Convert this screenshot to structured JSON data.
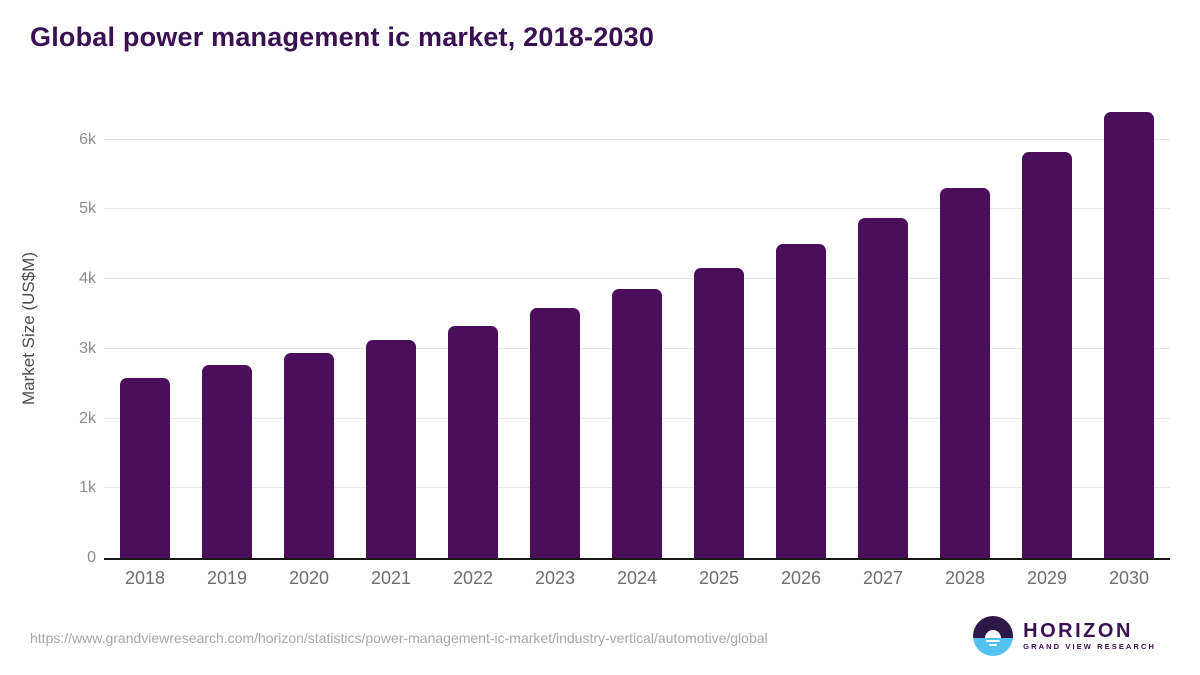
{
  "page": {
    "source_url": "https://www.grandviewresearch.com/horizon/statistics/power-management-ic-market/industry-vertical/automotive/global"
  },
  "logo": {
    "name": "HORIZON",
    "subtitle": "GRAND VIEW RESEARCH",
    "mark": "sunset-over-water-icon"
  },
  "colors": {
    "bar": "#4a0e5a",
    "title": "#3b1053",
    "gridline": "#e8e8e8",
    "axis_line": "#161616",
    "y_tick_label": "#8c8c8c",
    "x_tick_label": "#6e6e6e",
    "y_axis_title": "#4d4d4d",
    "source_url": "#a6a6a6",
    "logo_purple": "#2d1947",
    "logo_blue": "#54c2ef"
  },
  "chart_data": {
    "type": "bar",
    "title": "Global power management ic market, 2018-2030",
    "categories": [
      "2018",
      "2019",
      "2020",
      "2021",
      "2022",
      "2023",
      "2024",
      "2025",
      "2026",
      "2027",
      "2028",
      "2029",
      "2030"
    ],
    "values": [
      2585,
      2775,
      2945,
      3130,
      3335,
      3580,
      3855,
      4155,
      4505,
      4875,
      5310,
      5830,
      6400
    ],
    "xlabel": "",
    "ylabel": "Market Size (US$M)",
    "ylim": [
      0,
      6570
    ],
    "yticks": [
      {
        "value": 0,
        "label": "0"
      },
      {
        "value": 1000,
        "label": "1k"
      },
      {
        "value": 2000,
        "label": "2k"
      },
      {
        "value": 3000,
        "label": "3k"
      },
      {
        "value": 4000,
        "label": "4k"
      },
      {
        "value": 5000,
        "label": "5k"
      },
      {
        "value": 6000,
        "label": "6k"
      }
    ],
    "grid": "horizontal",
    "legend": "none",
    "bar_color": "#4a0e5a"
  }
}
